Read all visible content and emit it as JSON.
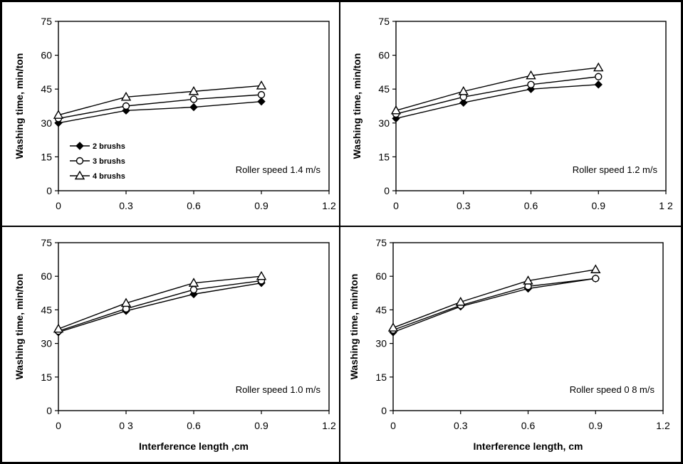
{
  "chart_data": [
    {
      "type": "line",
      "annotation": "Roller speed 1.4 m/s",
      "xlabel": "",
      "ylabel": "Washing time, min/ton",
      "x": [
        0,
        0.3,
        0.6,
        0.9
      ],
      "xticks": [
        "0",
        "0.3",
        "0.6",
        "0.9",
        "1.2"
      ],
      "yticks": [
        "0",
        "15",
        "30",
        "45",
        "60",
        "75"
      ],
      "xlim": [
        0,
        1.2
      ],
      "ylim": [
        0,
        75
      ],
      "grid": false,
      "legend": "lower-left",
      "series": [
        {
          "name": "2 brushs",
          "marker": "filled-diamond",
          "values": [
            30,
            35.5,
            37,
            39.5
          ]
        },
        {
          "name": "3 brushs",
          "marker": "open-circle",
          "values": [
            32,
            37.5,
            40.5,
            42.5
          ]
        },
        {
          "name": "4 brushs",
          "marker": "open-triangle",
          "values": [
            33.5,
            41.5,
            44,
            46.5
          ]
        }
      ]
    },
    {
      "type": "line",
      "annotation": "Roller speed 1.2 m/s",
      "xlabel": "",
      "ylabel": "Washing time, min/ton",
      "x": [
        0,
        0.3,
        0.6,
        0.9
      ],
      "xticks": [
        "0",
        "0.3",
        "0.6",
        "0.9",
        "1 2"
      ],
      "yticks": [
        "0",
        "15",
        "30",
        "45",
        "60",
        "75"
      ],
      "xlim": [
        0,
        1.2
      ],
      "ylim": [
        0,
        75
      ],
      "grid": false,
      "series": [
        {
          "marker": "filled-diamond",
          "values": [
            32,
            39,
            45,
            47
          ]
        },
        {
          "marker": "open-circle",
          "values": [
            34,
            41.5,
            47,
            50.5
          ]
        },
        {
          "marker": "open-triangle",
          "values": [
            35.5,
            44,
            51,
            54.5
          ]
        }
      ]
    },
    {
      "type": "line",
      "annotation": "Roller speed 1.0 m/s",
      "xlabel": "Interference length ,cm",
      "ylabel": "Washing time, min/ton",
      "x": [
        0,
        0.3,
        0.6,
        0.9
      ],
      "xticks": [
        "0",
        "0 3",
        "0.6",
        "0.9",
        "1.2"
      ],
      "yticks": [
        "0",
        "15",
        "30",
        "45",
        "60",
        "75"
      ],
      "xlim": [
        0,
        1.2
      ],
      "ylim": [
        0,
        75
      ],
      "grid": false,
      "series": [
        {
          "marker": "filled-diamond",
          "values": [
            35,
            44.5,
            52,
            57
          ]
        },
        {
          "marker": "open-circle",
          "values": [
            35.5,
            45.5,
            54,
            58
          ]
        },
        {
          "marker": "open-triangle",
          "values": [
            36.5,
            48,
            57,
            60
          ]
        }
      ]
    },
    {
      "type": "line",
      "annotation": "Roller speed 0 8 m/s",
      "xlabel": "Interference length, cm",
      "ylabel": "Washing time, min/ton",
      "x": [
        0,
        0.3,
        0.6,
        0.9
      ],
      "xticks": [
        "0",
        "0.3",
        "0.6",
        "0.9",
        "1.2"
      ],
      "yticks": [
        "0",
        "15",
        "30",
        "45",
        "60",
        "75"
      ],
      "xlim": [
        0,
        1.2
      ],
      "ylim": [
        0,
        75
      ],
      "grid": false,
      "series": [
        {
          "marker": "filled-diamond",
          "values": [
            35,
            46.5,
            54.5,
            59
          ]
        },
        {
          "marker": "open-circle",
          "values": [
            36,
            47,
            55.5,
            59
          ]
        },
        {
          "marker": "open-triangle",
          "values": [
            37,
            48.5,
            58,
            63
          ]
        }
      ]
    }
  ]
}
